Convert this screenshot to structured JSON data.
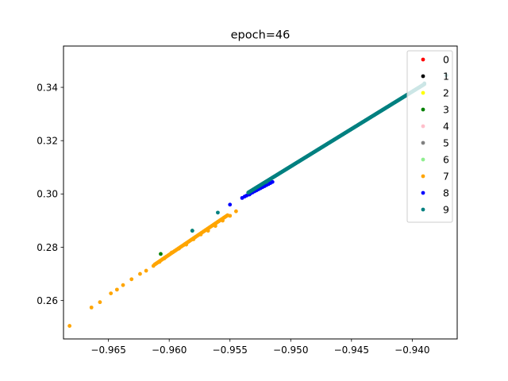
{
  "chart_data": {
    "type": "scatter",
    "title": "epoch=46",
    "xlabel": "",
    "ylabel": "",
    "xlim": [
      -0.9687,
      -0.9363
    ],
    "ylim": [
      0.2456,
      0.3555
    ],
    "xticks": [
      -0.965,
      -0.96,
      -0.955,
      -0.95,
      -0.945,
      -0.94
    ],
    "xtick_labels": [
      "−0.965",
      "−0.960",
      "−0.955",
      "−0.950",
      "−0.945",
      "−0.940"
    ],
    "yticks": [
      0.26,
      0.28,
      0.3,
      0.32,
      0.34
    ],
    "ytick_labels": [
      "0.26",
      "0.28",
      "0.30",
      "0.32",
      "0.34"
    ],
    "grid": false,
    "legend_position": "top-right",
    "series": [
      {
        "name": "0",
        "color": "#ff0000",
        "points": []
      },
      {
        "name": "1",
        "color": "#000000",
        "points": []
      },
      {
        "name": "2",
        "color": "#ffff00",
        "points": []
      },
      {
        "name": "3",
        "color": "#008000",
        "points": [
          [
            -0.9607,
            0.2775
          ],
          [
            -0.9581,
            0.2862
          ]
        ]
      },
      {
        "name": "4",
        "color": "#ffc0cb",
        "points": []
      },
      {
        "name": "5",
        "color": "#808080",
        "points": []
      },
      {
        "name": "6",
        "color": "#90ee90",
        "points": []
      },
      {
        "name": "7",
        "color": "#ffa500",
        "points": [
          [
            -0.9682,
            0.2505
          ],
          [
            -0.9664,
            0.2574
          ],
          [
            -0.9657,
            0.2594
          ],
          [
            -0.9648,
            0.2627
          ],
          [
            -0.9643,
            0.2641
          ],
          [
            -0.9638,
            0.2658
          ],
          [
            -0.9631,
            0.268
          ],
          [
            -0.9624,
            0.27
          ],
          [
            -0.9619,
            0.2712
          ],
          [
            -0.9613,
            0.273
          ],
          [
            -0.9608,
            0.2745
          ],
          [
            -0.9604,
            0.2758
          ],
          [
            -0.9598,
            0.278
          ],
          [
            -0.9592,
            0.2795
          ],
          [
            -0.9586,
            0.281
          ],
          [
            -0.958,
            0.283
          ],
          [
            -0.9574,
            0.2848
          ],
          [
            -0.9568,
            0.2862
          ],
          [
            -0.9562,
            0.288
          ],
          [
            -0.9556,
            0.29
          ],
          [
            -0.955,
            0.2918
          ],
          [
            -0.9545,
            0.2935
          ]
        ],
        "segment": {
          "from": [
            -0.9612,
            0.2735
          ],
          "to": [
            -0.9552,
            0.292
          ],
          "count": 90
        }
      },
      {
        "name": "8",
        "color": "#0000ff",
        "points": [
          [
            -0.955,
            0.296
          ],
          [
            -0.954,
            0.2985
          ],
          [
            -0.9534,
            0.2998
          ],
          [
            -0.9528,
            0.3015
          ],
          [
            -0.9522,
            0.303
          ]
        ],
        "segment": {
          "from": [
            -0.9538,
            0.299
          ],
          "to": [
            -0.9515,
            0.3045
          ],
          "count": 15
        }
      },
      {
        "name": "9",
        "color": "#008080",
        "points": [
          [
            -0.9581,
            0.2862
          ],
          [
            -0.956,
            0.293
          ],
          [
            -0.952,
            0.3045
          ],
          [
            -0.939,
            0.3415
          ],
          [
            -0.9372,
            0.3445
          ]
        ],
        "segment": {
          "from": [
            -0.9535,
            0.3005
          ],
          "to": [
            -0.939,
            0.3412
          ],
          "count": 400
        }
      }
    ]
  }
}
